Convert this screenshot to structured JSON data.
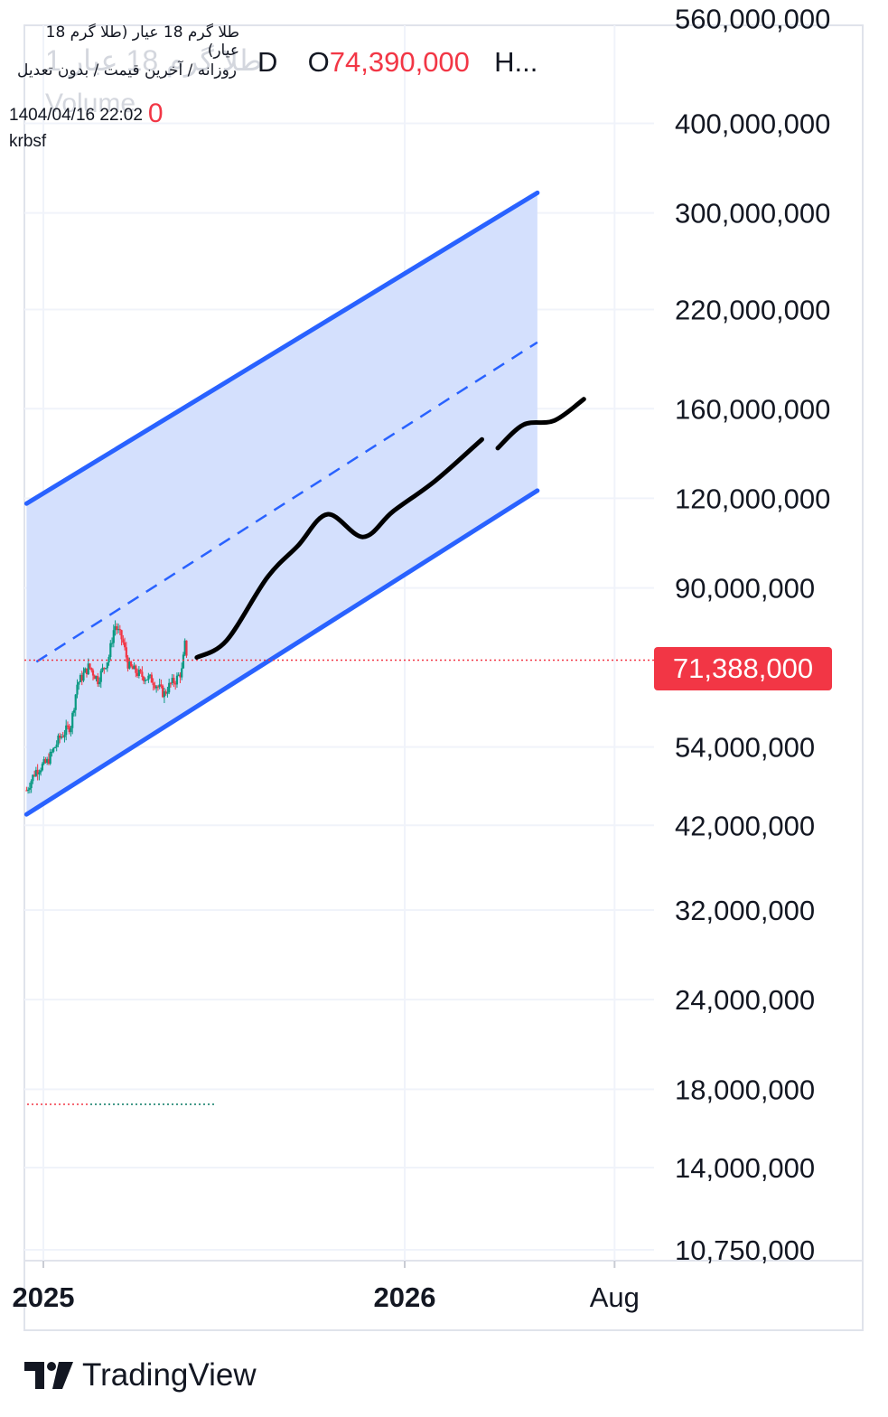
{
  "legend": {
    "symbol_title": "طلا گرم 18 عیار (طلا گرم 18 عیار)",
    "timeframe_info": "روزانه / آخرین قیمت / بدون تعدیل",
    "ghost_symbol": "طلا گرم 18 عیار 1",
    "ghost_volume": "Volume",
    "ohlc_prefix": "D",
    "open_label": "O",
    "open_value": "74,390,000",
    "high_label": "H...",
    "timestamp": "1404/04/16 22:02",
    "volume_value": "0",
    "author": "krbsf"
  },
  "last_price": {
    "label": "71,388,000",
    "value": 71388000,
    "color": "#f23645"
  },
  "brand": {
    "name": "TradingView"
  },
  "colors": {
    "channel_line": "#2962ff",
    "channel_fill": "#d2defd",
    "candle_up": "#089981",
    "candle_down": "#f23645",
    "projection": "#000000",
    "grid": "#f0f3fa"
  },
  "chart_data": {
    "type": "candlestick",
    "y_scale": "log",
    "ylim": [
      10750000,
      560000000
    ],
    "y_ticks": [
      {
        "value": 560000000,
        "label": "560,000,000"
      },
      {
        "value": 400000000,
        "label": "400,000,000"
      },
      {
        "value": 300000000,
        "label": "300,000,000"
      },
      {
        "value": 220000000,
        "label": "220,000,000"
      },
      {
        "value": 160000000,
        "label": "160,000,000"
      },
      {
        "value": 120000000,
        "label": "120,000,000"
      },
      {
        "value": 90000000,
        "label": "90,000,000"
      },
      {
        "value": 54000000,
        "label": "54,000,000"
      },
      {
        "value": 42000000,
        "label": "42,000,000"
      },
      {
        "value": 32000000,
        "label": "32,000,000"
      },
      {
        "value": 24000000,
        "label": "24,000,000"
      },
      {
        "value": 18000000,
        "label": "18,000,000"
      },
      {
        "value": 14000000,
        "label": "14,000,000"
      },
      {
        "value": 10750000,
        "label": "10,750,000"
      }
    ],
    "x_ticks": [
      {
        "label": "2025",
        "date": "2025-01-01"
      },
      {
        "label": "2026",
        "date": "2026-01-01"
      },
      {
        "label": "Aug",
        "date": "2026-08-01"
      }
    ],
    "xlim": [
      "2024-12-15",
      "2026-08-30"
    ],
    "series": [
      {
        "name": "price",
        "kind": "close",
        "points": [
          [
            "2024-12-15",
            47000000
          ],
          [
            "2024-12-24",
            50000000
          ],
          [
            "2025-01-05",
            51500000
          ],
          [
            "2025-01-17",
            55500000
          ],
          [
            "2025-01-29",
            58000000
          ],
          [
            "2025-02-04",
            66000000
          ],
          [
            "2025-02-16",
            70000000
          ],
          [
            "2025-02-25",
            67000000
          ],
          [
            "2025-03-08",
            72000000
          ],
          [
            "2025-03-14",
            80000000
          ],
          [
            "2025-03-22",
            76000000
          ],
          [
            "2025-03-28",
            70000000
          ],
          [
            "2025-04-09",
            68000000
          ],
          [
            "2025-04-21",
            67000000
          ],
          [
            "2025-05-03",
            64000000
          ],
          [
            "2025-05-09",
            66000000
          ],
          [
            "2025-05-15",
            67000000
          ],
          [
            "2025-05-21",
            69000000
          ],
          [
            "2025-05-24",
            75000000
          ],
          [
            "2025-05-27",
            71400000
          ]
        ]
      },
      {
        "name": "channel",
        "kind": "parallel_channel",
        "upper": [
          [
            "2024-12-15",
            118000000
          ],
          [
            "2026-05-15",
            320000000
          ]
        ],
        "lower": [
          [
            "2024-12-15",
            43500000
          ],
          [
            "2026-05-15",
            123000000
          ]
        ],
        "mid": [
          [
            "2024-12-25",
            71000000
          ],
          [
            "2026-05-15",
            198000000
          ]
        ]
      },
      {
        "name": "projection",
        "kind": "drawing",
        "points": [
          [
            "2025-06-05",
            72000000
          ],
          [
            "2025-07-05",
            76000000
          ],
          [
            "2025-08-15",
            93000000
          ],
          [
            "2025-09-15",
            103000000
          ],
          [
            "2025-10-15",
            114000000
          ],
          [
            "2025-11-20",
            106000000
          ],
          [
            "2025-12-20",
            115000000
          ],
          [
            "2026-02-01",
            127000000
          ],
          [
            "2026-03-20",
            145000000
          ]
        ],
        "points2": [
          [
            "2026-04-05",
            141000000
          ],
          [
            "2026-05-01",
            152000000
          ],
          [
            "2026-06-01",
            154000000
          ],
          [
            "2026-07-01",
            165000000
          ]
        ]
      }
    ]
  }
}
